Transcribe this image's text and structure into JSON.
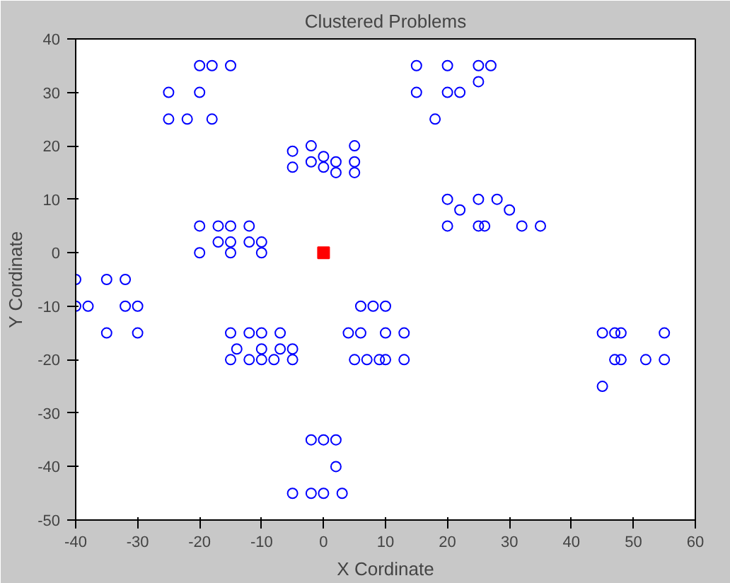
{
  "chart_data": {
    "type": "scatter",
    "title": "Clustered Problems",
    "xlabel": "X Cordinate",
    "ylabel": "Y Cordinate",
    "xlim": [
      -40,
      60
    ],
    "ylim": [
      -50,
      40
    ],
    "xticks": [
      -40,
      -30,
      -20,
      -10,
      0,
      10,
      20,
      30,
      40,
      50,
      60
    ],
    "yticks": [
      -50,
      -40,
      -30,
      -20,
      -10,
      0,
      10,
      20,
      30,
      40
    ],
    "series": [
      {
        "color": "#0000ff",
        "marker": "circle",
        "x": [
          -20,
          -18,
          -15,
          -25,
          -20,
          -25,
          -22,
          -18,
          -5,
          -5,
          -2,
          -2,
          0,
          0,
          2,
          2,
          5,
          5,
          5,
          -20,
          -17,
          -15,
          -12,
          -17,
          -15,
          -12,
          -10,
          -20,
          -15,
          -10,
          -40,
          -35,
          -32,
          -40,
          -38,
          -32,
          -30,
          -35,
          -30,
          -15,
          -12,
          -10,
          -7,
          -14,
          -10,
          -7,
          -5,
          -15,
          -12,
          -10,
          -8,
          -5,
          -2,
          0,
          2,
          2,
          -5,
          -2,
          0,
          3,
          6,
          8,
          10,
          4,
          6,
          10,
          13,
          5,
          7,
          9,
          10,
          13,
          15,
          20,
          25,
          27,
          25,
          15,
          20,
          22,
          18,
          20,
          25,
          28,
          22,
          30,
          20,
          25,
          26,
          32,
          35,
          45,
          47,
          48,
          55,
          47,
          48,
          52,
          55,
          45
        ],
        "values": [
          35,
          35,
          35,
          30,
          30,
          25,
          25,
          25,
          19,
          16,
          20,
          17,
          18,
          16,
          17,
          15,
          20,
          17,
          15,
          5,
          5,
          5,
          5,
          2,
          2,
          2,
          2,
          0,
          0,
          0,
          -5,
          -5,
          -5,
          -10,
          -10,
          -10,
          -10,
          -15,
          -15,
          -15,
          -15,
          -15,
          -15,
          -18,
          -18,
          -18,
          -18,
          -20,
          -20,
          -20,
          -20,
          -20,
          -35,
          -35,
          -35,
          -40,
          -45,
          -45,
          -45,
          -45,
          -10,
          -10,
          -10,
          -15,
          -15,
          -15,
          -15,
          -20,
          -20,
          -20,
          -20,
          -20,
          35,
          35,
          35,
          35,
          32,
          30,
          30,
          30,
          25,
          10,
          10,
          10,
          8,
          8,
          5,
          5,
          5,
          5,
          5,
          -15,
          -15,
          -15,
          -15,
          -20,
          -20,
          -20,
          -20,
          -25
        ]
      },
      {
        "color": "#ff0000",
        "marker": "square",
        "x": [
          0
        ],
        "values": [
          0
        ]
      }
    ]
  }
}
